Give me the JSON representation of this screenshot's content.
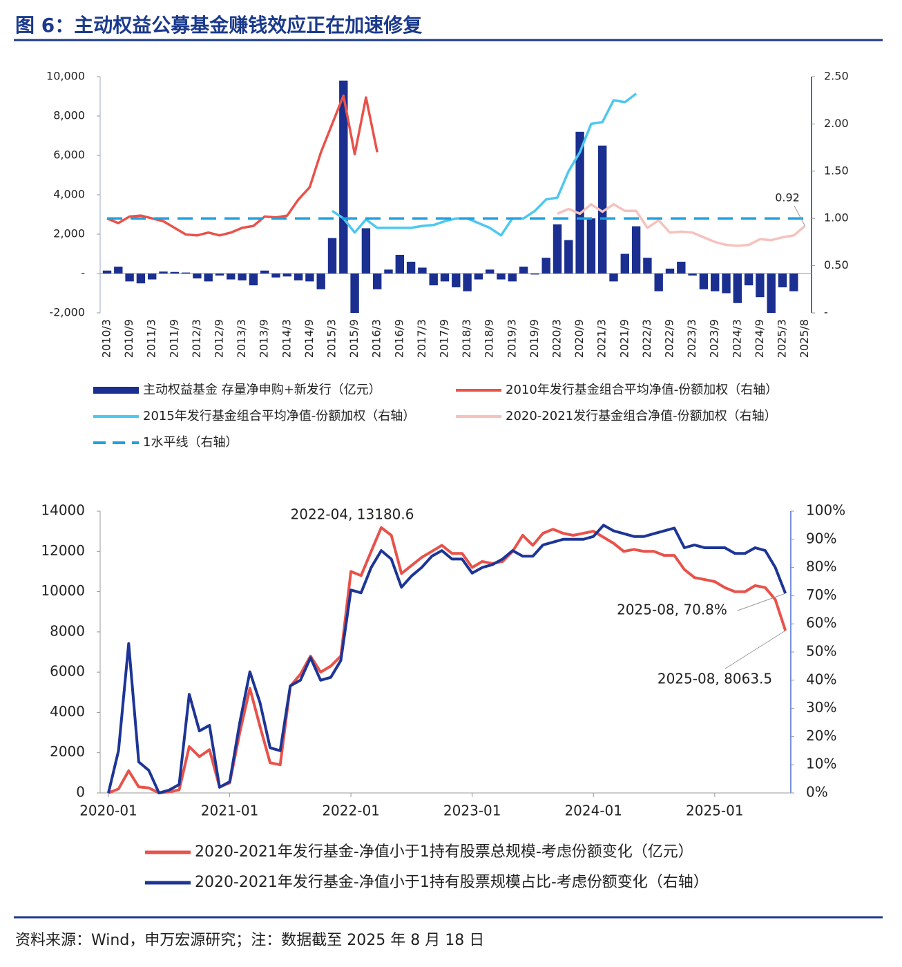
{
  "header": {
    "title": "图 6：主动权益公募基金赚钱效应正在加速修复"
  },
  "footer": {
    "source": "资料来源：Wind，申万宏源研究；注：数据截至 2025 年 8 月 18 日"
  },
  "chart_data": [
    {
      "type": "combo",
      "categories": [
        "2010/3",
        null,
        "2010/9",
        null,
        "2011/3",
        null,
        "2011/9",
        null,
        "2012/3",
        null,
        "2012/9",
        null,
        "2013/3",
        null,
        "2013/9",
        null,
        "2014/3",
        null,
        "2014/9",
        null,
        "2015/3",
        null,
        "2015/9",
        null,
        "2016/3",
        null,
        "2016/9",
        null,
        "2017/3",
        null,
        "2017/9",
        null,
        "2018/3",
        null,
        "2018/9",
        null,
        "2019/3",
        null,
        "2019/9",
        null,
        "2020/3",
        null,
        "2020/9",
        null,
        "2021/3",
        null,
        "2021/9",
        null,
        "2022/3",
        null,
        "2022/9",
        null,
        "2023/3",
        null,
        "2023/9",
        null,
        "2024/3",
        null,
        "2024/9",
        null,
        "2025/3",
        null,
        "2025/8"
      ],
      "ylim": [
        -2000,
        10000
      ],
      "yticks": [
        {
          "value": -2000,
          "label": "-2,000"
        },
        {
          "value": 0,
          "label": "-"
        },
        {
          "value": 2000,
          "label": "2,000"
        },
        {
          "value": 4000,
          "label": "4,000"
        },
        {
          "value": 6000,
          "label": "6,000"
        },
        {
          "value": 8000,
          "label": "8,000"
        },
        {
          "value": 10000,
          "label": "10,000"
        }
      ],
      "y2lim": [
        0,
        2.5
      ],
      "y2ticks": [
        {
          "value": 0,
          "label": "-"
        },
        {
          "value": 0.5,
          "label": "0.50"
        },
        {
          "value": 1,
          "label": "1.00"
        },
        {
          "value": 1.5,
          "label": "1.50"
        },
        {
          "value": 2,
          "label": "2.00"
        },
        {
          "value": 2.5,
          "label": "2.50"
        }
      ],
      "grid": false,
      "series": [
        {
          "name": "主动权益基金 存量净申购+新发行（亿元）",
          "type": "bar",
          "color": "#1a2f8f",
          "values": [
            150,
            350,
            -400,
            -500,
            -300,
            100,
            80,
            50,
            -250,
            -400,
            -100,
            -300,
            -350,
            -600,
            150,
            -200,
            -150,
            -350,
            -400,
            -800,
            1800,
            9800,
            -2000,
            2300,
            -800,
            200,
            950,
            600,
            300,
            -600,
            -400,
            -700,
            -900,
            -300,
            200,
            -300,
            -400,
            350,
            -50,
            800,
            2500,
            1700,
            7200,
            2800,
            6500,
            -400,
            1000,
            2400,
            800,
            -900,
            250,
            600,
            -100,
            -800,
            -900,
            -1000,
            -1500,
            -600,
            -1200,
            -2000,
            -700,
            -900,
            null
          ]
        },
        {
          "name": "2010年发行基金组合平均净值-份额加权（右轴）",
          "type": "line",
          "axis": "y2",
          "color": "#e8524a",
          "values": [
            1.0,
            0.95,
            1.02,
            1.03,
            1.0,
            0.97,
            0.9,
            0.83,
            0.82,
            0.85,
            0.82,
            0.85,
            0.9,
            0.92,
            1.02,
            1.01,
            1.03,
            1.2,
            1.33,
            1.7,
            2.0,
            2.3,
            1.68,
            2.28,
            1.7,
            null,
            null,
            null,
            null,
            null,
            null,
            null,
            null,
            null,
            null,
            null,
            null,
            null,
            null,
            null,
            null,
            null,
            null,
            null,
            null,
            null,
            null,
            null,
            null,
            null,
            null,
            null,
            null,
            null,
            null,
            null,
            null,
            null,
            null,
            null,
            null,
            null,
            null
          ]
        },
        {
          "name": "2015年发行基金组合平均净值-份额加权（右轴）",
          "type": "line",
          "axis": "y2",
          "color": "#4cc8f0",
          "values": [
            null,
            null,
            null,
            null,
            null,
            null,
            null,
            null,
            null,
            null,
            null,
            null,
            null,
            null,
            null,
            null,
            null,
            null,
            null,
            null,
            1.08,
            1.0,
            0.85,
            0.99,
            0.9,
            0.9,
            0.9,
            0.9,
            0.92,
            0.93,
            0.97,
            1.0,
            1.0,
            0.95,
            0.9,
            0.82,
            1.0,
            1.0,
            1.08,
            1.2,
            1.22,
            1.5,
            1.7,
            2.0,
            2.02,
            2.25,
            2.23,
            2.32,
            null,
            null,
            null,
            null,
            null,
            null,
            null,
            null,
            null,
            null,
            null,
            null,
            null,
            null,
            null
          ]
        },
        {
          "name": "2020-2021发行基金组合净值-份额加权（右轴）",
          "type": "line",
          "axis": "y2",
          "color": "#f5c2bd",
          "values": [
            null,
            null,
            null,
            null,
            null,
            null,
            null,
            null,
            null,
            null,
            null,
            null,
            null,
            null,
            null,
            null,
            null,
            null,
            null,
            null,
            null,
            null,
            null,
            null,
            null,
            null,
            null,
            null,
            null,
            null,
            null,
            null,
            null,
            null,
            null,
            null,
            null,
            null,
            null,
            null,
            1.05,
            1.1,
            1.05,
            1.15,
            1.07,
            1.15,
            1.08,
            1.08,
            0.9,
            0.98,
            0.85,
            0.86,
            0.85,
            0.8,
            0.75,
            0.72,
            0.71,
            0.72,
            0.78,
            0.77,
            0.8,
            0.82,
            0.92
          ]
        },
        {
          "name": "1水平线（右轴）",
          "type": "line",
          "axis": "y2",
          "dash": true,
          "color": "#1da1e0",
          "values": [
            1,
            1,
            1,
            1,
            1,
            1,
            1,
            1,
            1,
            1,
            1,
            1,
            1,
            1,
            1,
            1,
            1,
            1,
            1,
            1,
            1,
            1,
            1,
            1,
            1,
            1,
            1,
            1,
            1,
            1,
            1,
            1,
            1,
            1,
            1,
            1,
            1,
            1,
            1,
            1,
            1,
            1,
            1,
            1,
            1,
            1,
            1,
            1,
            1,
            1,
            1,
            1,
            1,
            1,
            1,
            1,
            1,
            1,
            1,
            1,
            1,
            1,
            1
          ]
        }
      ],
      "annotations": [
        "0.92"
      ]
    },
    {
      "type": "line",
      "categories": [
        "2020-01",
        null,
        null,
        null,
        null,
        null,
        null,
        null,
        null,
        null,
        null,
        null,
        "2021-01",
        null,
        null,
        null,
        null,
        null,
        null,
        null,
        null,
        null,
        null,
        null,
        "2022-01",
        null,
        null,
        null,
        null,
        null,
        null,
        null,
        null,
        null,
        null,
        null,
        "2023-01",
        null,
        null,
        null,
        null,
        null,
        null,
        null,
        null,
        null,
        null,
        null,
        "2024-01",
        null,
        null,
        null,
        null,
        null,
        null,
        null,
        null,
        null,
        null,
        null,
        "2025-01",
        null,
        null,
        null,
        null,
        null,
        null,
        null
      ],
      "ylim": [
        0,
        14000
      ],
      "yticks": [
        0,
        2000,
        4000,
        6000,
        8000,
        10000,
        12000,
        14000
      ],
      "y2lim": [
        0,
        100
      ],
      "y2ticks": [
        {
          "value": 0,
          "label": "0%"
        },
        {
          "value": 10,
          "label": "10%"
        },
        {
          "value": 20,
          "label": "20%"
        },
        {
          "value": 30,
          "label": "30%"
        },
        {
          "value": 40,
          "label": "40%"
        },
        {
          "value": 50,
          "label": "50%"
        },
        {
          "value": 60,
          "label": "60%"
        },
        {
          "value": 70,
          "label": "70%"
        },
        {
          "value": 80,
          "label": "80%"
        },
        {
          "value": 90,
          "label": "90%"
        },
        {
          "value": 100,
          "label": "100%"
        }
      ],
      "grid": false,
      "series": [
        {
          "name": "2020-2021年发行基金-净值小于1持有股票总规模-考虑份额变化（亿元）",
          "color": "#e8524a",
          "values": [
            0,
            200,
            1100,
            300,
            250,
            0,
            50,
            150,
            2300,
            1800,
            2150,
            300,
            500,
            3000,
            5200,
            3300,
            1500,
            1400,
            5300,
            5900,
            6800,
            6000,
            6300,
            6800,
            11000,
            10800,
            12000,
            13180.6,
            12800,
            10900,
            11300,
            11700,
            12000,
            12300,
            11900,
            11900,
            11200,
            11500,
            11400,
            11500,
            12000,
            12800,
            12300,
            12900,
            13100,
            12900,
            12800,
            12900,
            13000,
            12700,
            12400,
            12000,
            12100,
            12000,
            12000,
            11800,
            11800,
            11100,
            10700,
            10600,
            10500,
            10200,
            10000,
            10000,
            10300,
            10200,
            9600,
            8063.5
          ]
        },
        {
          "name": "2020-2021年发行基金-净值小于1持有股票规模占比-考虑份额变化（右轴）",
          "axis": "y2",
          "color": "#1c3596",
          "values": [
            0,
            15,
            53,
            11,
            8,
            0,
            1,
            3,
            35,
            22,
            24,
            2,
            4,
            25,
            43,
            32,
            16,
            15,
            38,
            40,
            48,
            40,
            41,
            47,
            72,
            71,
            80,
            86,
            83,
            73,
            77,
            80,
            84,
            86,
            83,
            83,
            78,
            80,
            81,
            83,
            86,
            84,
            84,
            88,
            89,
            90,
            90,
            90,
            91,
            95,
            93,
            92,
            91,
            91,
            92,
            93,
            94,
            87,
            88,
            87,
            87,
            87,
            85,
            85,
            87,
            86,
            80,
            70.8
          ]
        }
      ],
      "annotations": [
        "2022-04, 13180.6",
        "2025-08, 70.8%",
        "2025-08, 8063.5"
      ]
    }
  ]
}
